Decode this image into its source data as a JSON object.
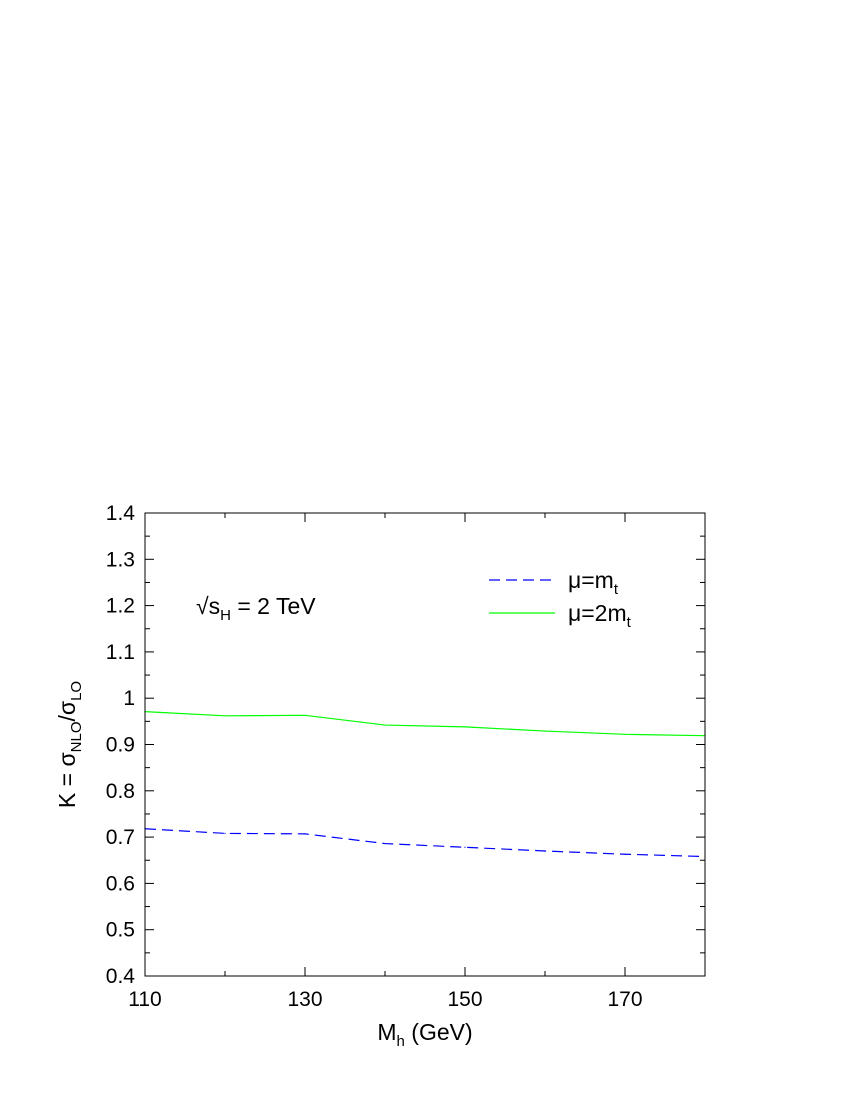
{
  "chart_data": {
    "type": "line",
    "xlabel": {
      "main": "M",
      "sub": "h",
      "rest": " (GeV)"
    },
    "ylabel": {
      "pre": "K = σ",
      "sub1": "NLO",
      "mid": "/σ",
      "sub2": "LO"
    },
    "annotation": {
      "root": "√",
      "main": "s",
      "sub": "H",
      "rest": " = 2 TeV"
    },
    "xlim": [
      110,
      180
    ],
    "ylim": [
      0.4,
      1.4
    ],
    "x_ticks": [
      110,
      130,
      150,
      170
    ],
    "x_tick_labels": [
      "110",
      "130",
      "150",
      "170"
    ],
    "y_ticks": [
      0.4,
      0.5,
      0.6,
      0.7,
      0.8,
      0.9,
      1.0,
      1.1,
      1.2,
      1.3,
      1.4
    ],
    "y_tick_labels": [
      "0.4",
      "0.5",
      "0.6",
      "0.7",
      "0.8",
      "0.9",
      "1",
      "1.1",
      "1.2",
      "1.3",
      "1.4"
    ],
    "legend_position": "top-right",
    "grid": false,
    "series": [
      {
        "name": "μ=m",
        "name_sub": "t",
        "color": "#0000ff",
        "dashed": true,
        "x": [
          110,
          120,
          130,
          140,
          150,
          160,
          170,
          180
        ],
        "y": [
          0.718,
          0.708,
          0.707,
          0.686,
          0.678,
          0.67,
          0.663,
          0.658
        ]
      },
      {
        "name": "μ=2m",
        "name_sub": "t",
        "color": "#00ff00",
        "dashed": false,
        "x": [
          110,
          120,
          130,
          140,
          150,
          160,
          170,
          180
        ],
        "y": [
          0.971,
          0.962,
          0.963,
          0.942,
          0.938,
          0.929,
          0.922,
          0.919
        ]
      }
    ]
  }
}
